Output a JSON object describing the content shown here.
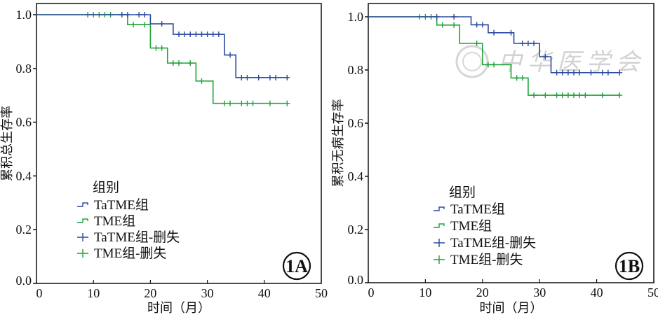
{
  "chart_data": [
    {
      "type": "line",
      "subtype": "kaplan-meier",
      "panel_label": "1A",
      "xlabel": "时间（月）",
      "ylabel": "累积总生存率",
      "xlim": [
        0,
        50
      ],
      "ylim": [
        0,
        1.0
      ],
      "xticks": [
        "0",
        "10",
        "20",
        "30",
        "40",
        "50"
      ],
      "yticks": [
        "0.0",
        "0.2",
        "0.4",
        "0.6",
        "0.8",
        "1.0"
      ],
      "legend": {
        "title": "组别",
        "placement": "lower-left",
        "entries": [
          "TaTME组",
          "TME组",
          "TaTME组-删失",
          "TME组-删失"
        ]
      },
      "series": [
        {
          "name": "TaTME组",
          "color": "#2b4aa0",
          "steps": [
            [
              0,
              1.0
            ],
            [
              20,
              0.966
            ],
            [
              24,
              0.927
            ],
            [
              33,
              0.85
            ],
            [
              35,
              0.766
            ]
          ],
          "end": 44,
          "censored": [
            15,
            16,
            18,
            19,
            22,
            25,
            26,
            27,
            28,
            29,
            30,
            31,
            32,
            34,
            36,
            37,
            39,
            41,
            42,
            44
          ]
        },
        {
          "name": "TME组",
          "color": "#1fa33a",
          "steps": [
            [
              0,
              1.0
            ],
            [
              16,
              0.963
            ],
            [
              20,
              0.876
            ],
            [
              23,
              0.82
            ],
            [
              28,
              0.753
            ],
            [
              31,
              0.67
            ]
          ],
          "end": 44,
          "censored": [
            9,
            10,
            11,
            12,
            13,
            15,
            17,
            19,
            21,
            22,
            24,
            25,
            27,
            29,
            33,
            34,
            36,
            37,
            38,
            41,
            44
          ]
        }
      ]
    },
    {
      "type": "line",
      "subtype": "kaplan-meier",
      "panel_label": "1B",
      "xlabel": "时间（月）",
      "ylabel": "累积无病生存率",
      "xlim": [
        0,
        50
      ],
      "ylim": [
        0,
        1.0
      ],
      "xticks": [
        "0",
        "10",
        "20",
        "30",
        "40",
        "50"
      ],
      "yticks": [
        "0.0",
        "0.2",
        "0.4",
        "0.6",
        "0.8",
        "1.0"
      ],
      "legend": {
        "title": "组别",
        "placement": "lower-left",
        "entries": [
          "TaTME组",
          "TME组",
          "TaTME组-删失",
          "TME组-删失"
        ]
      },
      "watermark": "中华医学会",
      "series": [
        {
          "name": "TaTME组",
          "color": "#2b4aa0",
          "steps": [
            [
              0,
              1.0
            ],
            [
              18,
              0.97
            ],
            [
              21,
              0.94
            ],
            [
              25.5,
              0.9
            ],
            [
              30,
              0.85
            ],
            [
              32,
              0.79
            ]
          ],
          "end": 44,
          "censored": [
            12,
            15,
            19,
            20,
            22,
            25,
            27,
            28,
            29,
            31,
            33,
            34,
            35,
            36,
            37,
            39,
            41,
            42,
            44
          ]
        },
        {
          "name": "TME组",
          "color": "#1fa33a",
          "steps": [
            [
              0,
              1.0
            ],
            [
              12,
              0.969
            ],
            [
              16,
              0.9
            ],
            [
              20,
              0.82
            ],
            [
              25,
              0.77
            ],
            [
              28,
              0.705
            ]
          ],
          "end": 44,
          "censored": [
            9,
            10,
            11,
            13,
            15,
            19,
            21,
            22,
            26,
            27,
            29,
            31,
            33,
            34,
            35,
            36,
            37,
            38,
            41,
            44
          ]
        }
      ]
    }
  ]
}
